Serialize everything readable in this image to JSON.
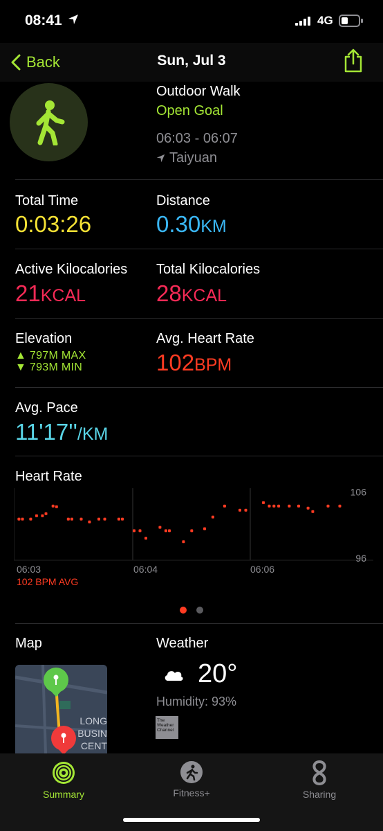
{
  "status": {
    "time": "08:41",
    "network": "4G"
  },
  "nav": {
    "back_label": "Back",
    "title": "Sun, Jul 3"
  },
  "workout": {
    "name": "Outdoor Walk",
    "goal": "Open Goal",
    "time_range": "06:03 - 06:07",
    "location": "Taiyuan"
  },
  "metrics": {
    "total_time": {
      "label": "Total Time",
      "value": "0:03:26"
    },
    "distance": {
      "label": "Distance",
      "value": "0.30",
      "unit": "KM"
    },
    "active_kcal": {
      "label": "Active Kilocalories",
      "value": "21",
      "unit": "KCAL"
    },
    "total_kcal": {
      "label": "Total Kilocalories",
      "value": "28",
      "unit": "KCAL"
    },
    "elevation": {
      "label": "Elevation",
      "max": "▲ 797M MAX",
      "min": "▼ 793M MIN"
    },
    "avg_heart_rate": {
      "label": "Avg. Heart Rate",
      "value": "102",
      "unit": "BPM"
    },
    "avg_pace": {
      "label": "Avg. Pace",
      "value": "11'17''",
      "unit": "/KM"
    }
  },
  "heart_rate_chart": {
    "title": "Heart Rate",
    "avg_label": "102 BPM AVG",
    "y_max_label": "106",
    "y_min_label": "96",
    "x_labels": [
      "06:03",
      "06:04",
      "06:06"
    ]
  },
  "chart_data": {
    "type": "scatter",
    "title": "Heart Rate",
    "ylim": [
      96,
      106
    ],
    "x_ticks": [
      "06:03",
      "06:04",
      "06:06"
    ],
    "series": [
      {
        "name": "",
        "color": "#ff3b22",
        "points": [
          [
            0.02,
            102.2
          ],
          [
            0.05,
            102.2
          ],
          [
            0.12,
            102.2
          ],
          [
            0.17,
            102.7
          ],
          [
            0.22,
            102.7
          ],
          [
            0.25,
            103.0
          ],
          [
            0.31,
            104.1
          ],
          [
            0.34,
            104.0
          ],
          [
            0.44,
            102.2
          ],
          [
            0.47,
            102.2
          ],
          [
            0.55,
            102.2
          ],
          [
            0.62,
            101.8
          ],
          [
            0.7,
            102.2
          ],
          [
            0.75,
            102.2
          ],
          [
            0.87,
            102.2
          ],
          [
            0.9,
            102.2
          ],
          [
            1.0,
            100.5
          ],
          [
            1.05,
            100.5
          ],
          [
            1.1,
            99.4
          ],
          [
            1.22,
            101.0
          ],
          [
            1.27,
            100.5
          ],
          [
            1.3,
            100.5
          ],
          [
            1.42,
            98.9
          ],
          [
            1.49,
            100.5
          ],
          [
            1.6,
            100.8
          ],
          [
            1.67,
            102.5
          ],
          [
            1.77,
            104.1
          ],
          [
            1.9,
            103.5
          ],
          [
            1.95,
            103.5
          ],
          [
            2.1,
            104.6
          ],
          [
            2.15,
            104.1
          ],
          [
            2.19,
            104.1
          ],
          [
            2.23,
            104.1
          ],
          [
            2.32,
            104.1
          ],
          [
            2.4,
            104.1
          ],
          [
            2.48,
            103.8
          ],
          [
            2.52,
            103.3
          ],
          [
            2.65,
            104.1
          ],
          [
            2.75,
            104.1
          ]
        ]
      }
    ]
  },
  "pagination": {
    "count": 2,
    "active": 0
  },
  "map": {
    "title": "Map",
    "label_lines": [
      "LONG",
      "BUSIN",
      "CENT"
    ]
  },
  "weather": {
    "title": "Weather",
    "temp": "20°",
    "humidity": "Humidity: 93%",
    "provider_lines": [
      "The",
      "Weather",
      "Channel"
    ]
  },
  "tabs": [
    {
      "label": "Summary",
      "active": true
    },
    {
      "label": "Fitness+",
      "active": false
    },
    {
      "label": "Sharing",
      "active": false
    }
  ]
}
